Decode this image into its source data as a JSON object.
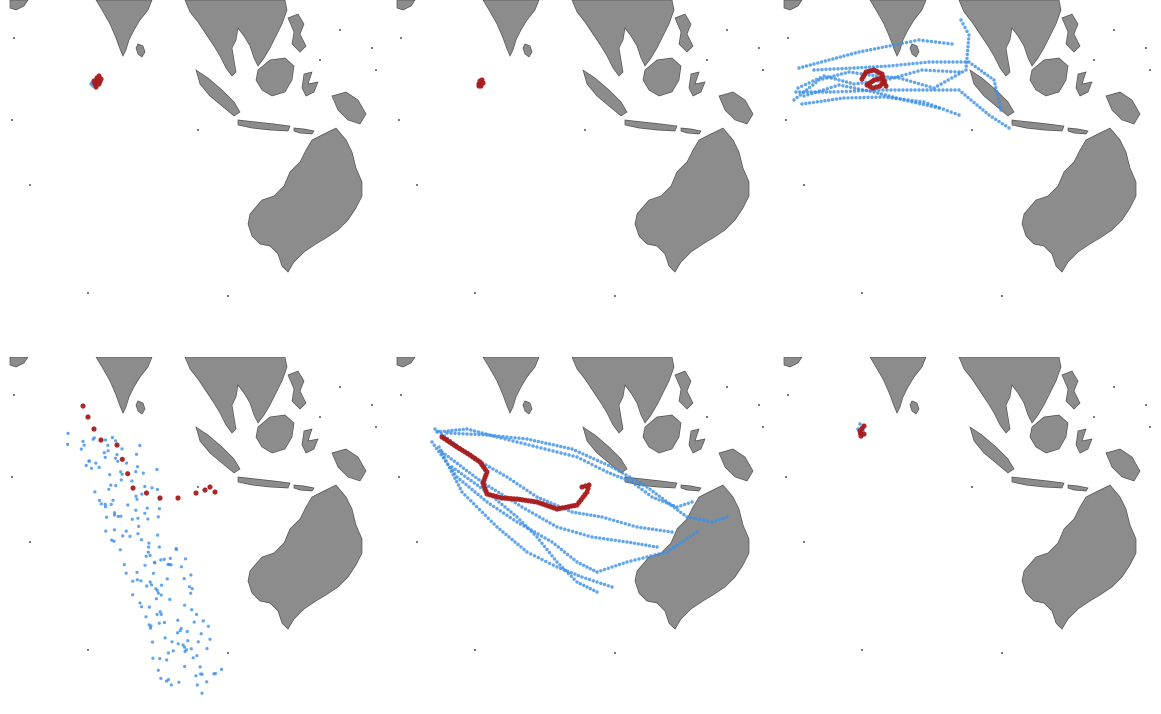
{
  "colors": {
    "land": "#8c8c8c",
    "coast": "#505050",
    "ensemble_track": "#3a8ee8",
    "observed_track": "#a81c1c",
    "background": "#ffffff"
  },
  "panels": [
    {
      "id": "p1",
      "observed": [
        [
          95,
          83
        ],
        [
          97,
          78
        ],
        [
          99,
          76
        ],
        [
          101,
          79
        ],
        [
          99,
          84
        ],
        [
          96,
          87
        ],
        [
          94,
          81
        ]
      ],
      "ensemble": [
        {
          "pts": [
            [
              92,
              83
            ],
            [
              95,
              80
            ],
            [
              98,
              78
            ],
            [
              100,
              82
            ],
            [
              97,
              86
            ],
            [
              93,
              86
            ],
            [
              91,
              84
            ]
          ],
          "dense": true
        }
      ]
    },
    {
      "id": "p2",
      "observed": [
        [
          92,
          84
        ],
        [
          93,
          81
        ],
        [
          95,
          80
        ],
        [
          96,
          83
        ],
        [
          94,
          86
        ],
        [
          92,
          86
        ]
      ],
      "ensemble": []
    },
    {
      "id": "p3",
      "observed": [
        [
          88,
          79
        ],
        [
          92,
          72
        ],
        [
          100,
          70
        ],
        [
          108,
          74
        ],
        [
          110,
          81
        ],
        [
          106,
          86
        ],
        [
          99,
          88
        ],
        [
          93,
          85
        ],
        [
          100,
          80
        ],
        [
          108,
          78
        ],
        [
          112,
          86
        ]
      ],
      "ensemble": [
        {
          "pts": [
            [
              20,
              100
            ],
            [
              45,
              80
            ],
            [
              75,
              72
            ],
            [
              95,
              75
            ],
            [
              125,
              78
            ],
            [
              160,
              88
            ],
            [
              192,
              70
            ],
            [
              195,
              35
            ],
            [
              187,
              20
            ]
          ],
          "dense": true
        },
        {
          "pts": [
            [
              25,
              68
            ],
            [
              55,
              60
            ],
            [
              85,
              52
            ],
            [
              120,
              45
            ],
            [
              145,
              40
            ],
            [
              178,
              44
            ]
          ],
          "dense": true
        },
        {
          "pts": [
            [
              22,
              92
            ],
            [
              60,
              92
            ],
            [
              105,
              90
            ],
            [
              145,
              90
            ],
            [
              185,
              90
            ],
            [
              215,
              115
            ],
            [
              235,
              128
            ]
          ],
          "dense": true
        },
        {
          "pts": [
            [
              24,
              88
            ],
            [
              50,
              76
            ],
            [
              80,
              84
            ],
            [
              112,
              80
            ],
            [
              148,
              70
            ],
            [
              185,
              72
            ]
          ],
          "dense": true
        },
        {
          "pts": [
            [
              28,
              104
            ],
            [
              70,
              98
            ],
            [
              110,
              97
            ],
            [
              150,
              102
            ],
            [
              185,
              115
            ]
          ],
          "dense": true
        },
        {
          "pts": [
            [
              40,
              70
            ],
            [
              80,
              68
            ],
            [
              115,
              66
            ],
            [
              155,
              62
            ],
            [
              195,
              62
            ],
            [
              220,
              80
            ],
            [
              227,
              110
            ]
          ],
          "dense": true
        },
        {
          "pts": [
            [
              30,
              96
            ],
            [
              65,
              85
            ],
            [
              100,
              92
            ],
            [
              130,
              100
            ],
            [
              165,
              108
            ]
          ],
          "dense": true
        }
      ]
    },
    {
      "id": "p4",
      "observed": [
        [
          83,
          49
        ],
        [
          88,
          60
        ],
        [
          94,
          72
        ],
        [
          101,
          83
        ],
        [
          117,
          88
        ],
        [
          133,
          131
        ],
        [
          160,
          141
        ],
        [
          178,
          141
        ],
        [
          196,
          136
        ],
        [
          205,
          133
        ],
        [
          210,
          130
        ],
        [
          215,
          135
        ]
      ],
      "ensemble": [
        {
          "pts": [
            [
              95,
              80
            ],
            [
              110,
              95
            ],
            [
              125,
              115
            ],
            [
              130,
              140
            ],
            [
              138,
              165
            ],
            [
              148,
              190
            ],
            [
              158,
              215
            ],
            [
              165,
              240
            ],
            [
              175,
              265
            ],
            [
              185,
              290
            ],
            [
              190,
              310
            ],
            [
              195,
              325
            ],
            [
              200,
              330
            ]
          ],
          "scatter": true
        }
      ]
    },
    {
      "id": "p5",
      "observed": [
        [
          55,
          80
        ],
        [
          70,
          90
        ],
        [
          83,
          98
        ],
        [
          93,
          105
        ],
        [
          100,
          115
        ],
        [
          96,
          126
        ],
        [
          100,
          137
        ],
        [
          115,
          141
        ],
        [
          130,
          142
        ],
        [
          150,
          145
        ],
        [
          170,
          152
        ],
        [
          190,
          148
        ],
        [
          200,
          135
        ],
        [
          202,
          128
        ],
        [
          195,
          130
        ]
      ],
      "ensemble": [
        {
          "pts": [
            [
              50,
              75
            ],
            [
              80,
              72
            ],
            [
              110,
              80
            ],
            [
              150,
              90
            ],
            [
              190,
              100
            ],
            [
              220,
              115
            ],
            [
              245,
              125
            ],
            [
              265,
              140
            ],
            [
              290,
              150
            ],
            [
              305,
              145
            ]
          ],
          "dense": true
        },
        {
          "pts": [
            [
              45,
              85
            ],
            [
              70,
              120
            ],
            [
              100,
              145
            ],
            [
              130,
              165
            ],
            [
              165,
              185
            ],
            [
              190,
              205
            ],
            [
              210,
              215
            ],
            [
              240,
              205
            ],
            [
              280,
              195
            ],
            [
              310,
              175
            ]
          ],
          "dense": true
        },
        {
          "pts": [
            [
              48,
              72
            ],
            [
              85,
              100
            ],
            [
              120,
              120
            ],
            [
              150,
              140
            ],
            [
              185,
              155
            ],
            [
              215,
              160
            ],
            [
              250,
              170
            ],
            [
              285,
              175
            ]
          ],
          "dense": true
        },
        {
          "pts": [
            [
              52,
              90
            ],
            [
              75,
              135
            ],
            [
              110,
              170
            ],
            [
              140,
              195
            ],
            [
              170,
              210
            ],
            [
              195,
              220
            ],
            [
              225,
              230
            ]
          ],
          "dense": true
        },
        {
          "pts": [
            [
              60,
              76
            ],
            [
              100,
              78
            ],
            [
              140,
              82
            ],
            [
              185,
              92
            ],
            [
              225,
              110
            ],
            [
              260,
              130
            ],
            [
              300,
              160
            ],
            [
              325,
              165
            ],
            [
              340,
              160
            ]
          ],
          "dense": true
        },
        {
          "pts": [
            [
              55,
              95
            ],
            [
              95,
              125
            ],
            [
              135,
              150
            ],
            [
              170,
              170
            ],
            [
              205,
              180
            ],
            [
              240,
              185
            ],
            [
              270,
              190
            ]
          ],
          "dense": true
        },
        {
          "pts": [
            [
              65,
              110
            ],
            [
              100,
              135
            ],
            [
              130,
              160
            ],
            [
              150,
              180
            ],
            [
              170,
              205
            ],
            [
              190,
              225
            ],
            [
              210,
              235
            ]
          ],
          "dense": true
        }
      ]
    },
    {
      "id": "p6",
      "observed": [
        [
          90,
          69
        ],
        [
          86,
          74
        ],
        [
          87,
          79
        ],
        [
          90,
          77
        ]
      ],
      "ensemble": [
        {
          "pts": [
            [
              86,
              67
            ],
            [
              84,
              72
            ],
            [
              86,
              76
            ],
            [
              89,
              73
            ]
          ],
          "dense": true
        }
      ]
    }
  ]
}
